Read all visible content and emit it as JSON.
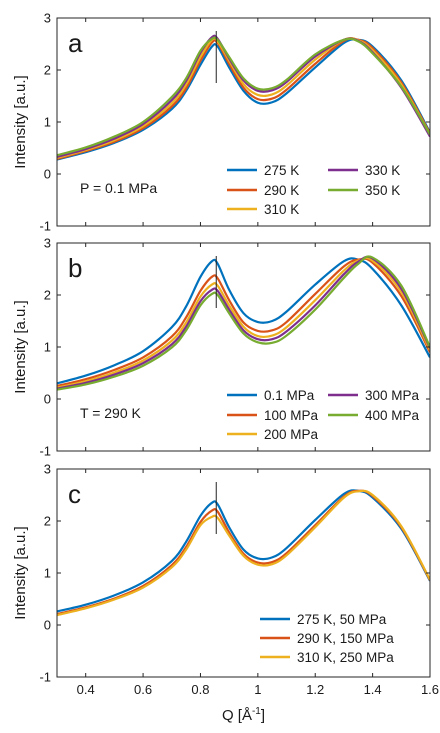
{
  "figure": {
    "xlabel_main": "Q [Å",
    "xlabel_sup": "-1",
    "xlabel_end": "]",
    "x_ticks": [
      "0.4",
      "0.6",
      "0.8",
      "1",
      "1.2",
      "1.4",
      "1.6"
    ],
    "y_ticks": [
      "-1",
      "0",
      "1",
      "2",
      "3"
    ]
  },
  "chart_data": [
    {
      "type": "line",
      "panel_label": "a",
      "condition": "P = 0.1 MPa",
      "xlabel": "Q [Å-1]",
      "ylabel": "Intensity [a.u.]",
      "xlim": [
        0.3,
        1.6
      ],
      "ylim": [
        -1,
        3
      ],
      "legend_position": "bottom-right",
      "marker_x": 0.855,
      "marker_y": [
        1.75,
        2.75
      ],
      "x": [
        0.3,
        0.4,
        0.5,
        0.6,
        0.7,
        0.75,
        0.8,
        0.84,
        0.86,
        0.9,
        0.95,
        1.0,
        1.05,
        1.1,
        1.2,
        1.3,
        1.35,
        1.4,
        1.5,
        1.6
      ],
      "series": [
        {
          "name": "275 K",
          "color": "#0072BD",
          "values": [
            0.28,
            0.42,
            0.6,
            0.85,
            1.25,
            1.6,
            2.1,
            2.45,
            2.45,
            2.05,
            1.6,
            1.37,
            1.38,
            1.55,
            2.05,
            2.52,
            2.58,
            2.45,
            1.8,
            0.8
          ]
        },
        {
          "name": "290 K",
          "color": "#D95319",
          "values": [
            0.29,
            0.44,
            0.62,
            0.88,
            1.3,
            1.65,
            2.18,
            2.53,
            2.52,
            2.12,
            1.66,
            1.44,
            1.45,
            1.62,
            2.12,
            2.56,
            2.58,
            2.42,
            1.76,
            0.78
          ]
        },
        {
          "name": "310 K",
          "color": "#EDB120",
          "values": [
            0.31,
            0.46,
            0.65,
            0.92,
            1.36,
            1.72,
            2.25,
            2.58,
            2.55,
            2.18,
            1.73,
            1.52,
            1.53,
            1.7,
            2.2,
            2.58,
            2.57,
            2.38,
            1.72,
            0.76
          ]
        },
        {
          "name": "330 K",
          "color": "#7E2F8E",
          "values": [
            0.33,
            0.48,
            0.68,
            0.96,
            1.42,
            1.79,
            2.33,
            2.63,
            2.6,
            2.22,
            1.8,
            1.6,
            1.61,
            1.77,
            2.26,
            2.58,
            2.56,
            2.34,
            1.66,
            0.72
          ]
        },
        {
          "name": "350 K",
          "color": "#77AC30",
          "values": [
            0.36,
            0.51,
            0.72,
            1.0,
            1.48,
            1.84,
            2.37,
            2.6,
            2.58,
            2.25,
            1.84,
            1.64,
            1.65,
            1.81,
            2.3,
            2.58,
            2.55,
            2.32,
            1.68,
            0.76
          ]
        }
      ]
    },
    {
      "type": "line",
      "panel_label": "b",
      "condition": "T = 290 K",
      "xlabel": "Q [Å-1]",
      "ylabel": "Intensity [a.u.]",
      "xlim": [
        0.3,
        1.6
      ],
      "ylim": [
        -1,
        3
      ],
      "legend_position": "bottom-right",
      "marker_x": 0.855,
      "marker_y": [
        1.75,
        2.75
      ],
      "x": [
        0.3,
        0.4,
        0.5,
        0.6,
        0.7,
        0.75,
        0.8,
        0.84,
        0.86,
        0.9,
        0.95,
        1.0,
        1.05,
        1.1,
        1.2,
        1.3,
        1.35,
        1.4,
        1.5,
        1.6
      ],
      "series": [
        {
          "name": "0.1 MPa",
          "color": "#0072BD",
          "values": [
            0.3,
            0.45,
            0.65,
            0.92,
            1.38,
            1.78,
            2.35,
            2.65,
            2.6,
            2.1,
            1.65,
            1.48,
            1.5,
            1.68,
            2.2,
            2.65,
            2.68,
            2.5,
            1.8,
            0.8
          ]
        },
        {
          "name": "100 MPa",
          "color": "#D95319",
          "values": [
            0.25,
            0.38,
            0.56,
            0.8,
            1.2,
            1.57,
            2.08,
            2.35,
            2.32,
            1.9,
            1.47,
            1.31,
            1.32,
            1.48,
            2.02,
            2.55,
            2.68,
            2.62,
            1.98,
            0.9
          ]
        },
        {
          "name": "200 MPa",
          "color": "#EDB120",
          "values": [
            0.22,
            0.34,
            0.51,
            0.74,
            1.12,
            1.47,
            1.97,
            2.2,
            2.18,
            1.8,
            1.39,
            1.21,
            1.22,
            1.38,
            1.9,
            2.47,
            2.66,
            2.66,
            2.06,
            0.94
          ]
        },
        {
          "name": "300 MPa",
          "color": "#7E2F8E",
          "values": [
            0.2,
            0.31,
            0.47,
            0.69,
            1.05,
            1.39,
            1.88,
            2.1,
            2.08,
            1.72,
            1.32,
            1.15,
            1.15,
            1.3,
            1.8,
            2.4,
            2.64,
            2.7,
            2.12,
            0.98
          ]
        },
        {
          "name": "400 MPa",
          "color": "#77AC30",
          "values": [
            0.18,
            0.28,
            0.43,
            0.64,
            0.99,
            1.32,
            1.8,
            2.02,
            2.0,
            1.65,
            1.26,
            1.09,
            1.08,
            1.22,
            1.72,
            2.33,
            2.6,
            2.72,
            2.18,
            1.0
          ]
        }
      ]
    },
    {
      "type": "line",
      "panel_label": "c",
      "condition": "",
      "xlabel": "Q [Å-1]",
      "ylabel": "Intensity [a.u.]",
      "xlim": [
        0.3,
        1.6
      ],
      "ylim": [
        -1,
        3
      ],
      "legend_position": "bottom-right",
      "marker_x": 0.855,
      "marker_y": [
        1.75,
        2.75
      ],
      "x": [
        0.3,
        0.4,
        0.5,
        0.6,
        0.7,
        0.75,
        0.8,
        0.84,
        0.86,
        0.9,
        0.95,
        1.0,
        1.05,
        1.1,
        1.2,
        1.3,
        1.35,
        1.4,
        1.5,
        1.6
      ],
      "series": [
        {
          "name": "275 K, 50 MPa",
          "color": "#0072BD",
          "values": [
            0.26,
            0.39,
            0.57,
            0.82,
            1.23,
            1.6,
            2.1,
            2.35,
            2.32,
            1.88,
            1.45,
            1.28,
            1.3,
            1.48,
            2.02,
            2.52,
            2.58,
            2.45,
            1.85,
            0.85
          ]
        },
        {
          "name": "290 K, 150 MPa",
          "color": "#D95319",
          "values": [
            0.21,
            0.34,
            0.51,
            0.75,
            1.15,
            1.5,
            1.98,
            2.2,
            2.18,
            1.78,
            1.37,
            1.2,
            1.21,
            1.38,
            1.92,
            2.47,
            2.58,
            2.48,
            1.88,
            0.86
          ]
        },
        {
          "name": "310 K, 250 MPa",
          "color": "#EDB120",
          "values": [
            0.19,
            0.32,
            0.49,
            0.72,
            1.11,
            1.45,
            1.92,
            2.08,
            2.06,
            1.72,
            1.33,
            1.16,
            1.17,
            1.34,
            1.88,
            2.45,
            2.57,
            2.5,
            1.9,
            0.87
          ]
        }
      ]
    }
  ]
}
